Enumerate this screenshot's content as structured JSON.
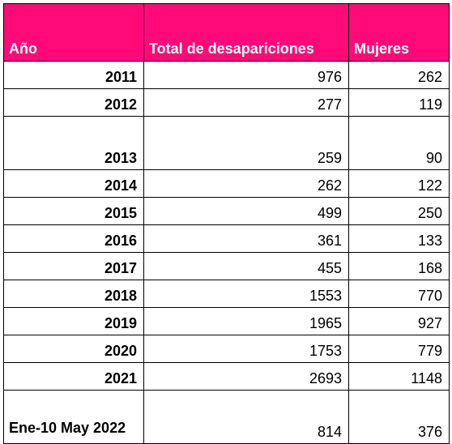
{
  "table": {
    "headers": [
      "Año",
      "Total de desapariciones",
      "Mujeres"
    ],
    "rows": [
      {
        "year": "2011",
        "total": "976",
        "women": "262"
      },
      {
        "year": "2012",
        "total": "277",
        "women": "119"
      },
      {
        "year": "2013",
        "total": "259",
        "women": "90"
      },
      {
        "year": "2014",
        "total": "262",
        "women": "122"
      },
      {
        "year": "2015",
        "total": "499",
        "women": "250"
      },
      {
        "year": "2016",
        "total": "361",
        "women": "133"
      },
      {
        "year": "2017",
        "total": "455",
        "women": "168"
      },
      {
        "year": "2018",
        "total": "1553",
        "women": "770"
      },
      {
        "year": "2019",
        "total": "1965",
        "women": "927"
      },
      {
        "year": "2020",
        "total": "1753",
        "women": "779"
      },
      {
        "year": "2021",
        "total": "2693",
        "women": "1148"
      },
      {
        "year": "Ene-10 May 2022",
        "total": "814",
        "women": "376"
      }
    ]
  },
  "colors": {
    "header_bg": "#ff0a78",
    "header_text": "#ffffff"
  }
}
